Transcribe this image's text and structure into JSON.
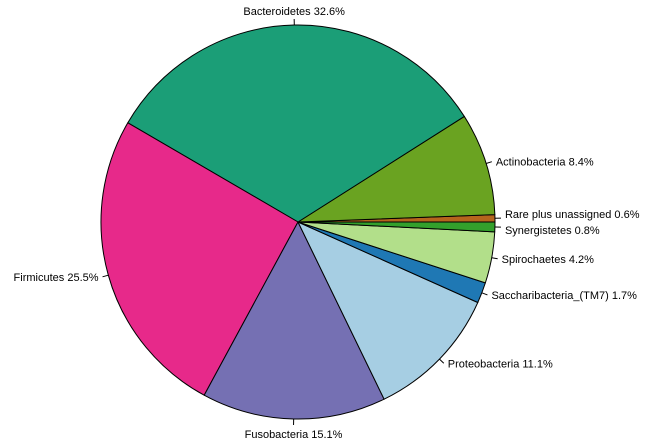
{
  "chart_data": {
    "type": "pie",
    "start_angle_deg": 0,
    "direction": "counterclockwise",
    "slices": [
      {
        "label": "Rare plus unassigned 0.6%",
        "value": 0.6,
        "color": "#b5651d"
      },
      {
        "label": "Actinobacteria 8.4%",
        "value": 8.4,
        "color": "#6aa321"
      },
      {
        "label": "Bacteroidetes 32.6%",
        "value": 32.6,
        "color": "#1b9e77"
      },
      {
        "label": "Firmicutes 25.5%",
        "value": 25.5,
        "color": "#e7298a"
      },
      {
        "label": "Fusobacteria 15.1%",
        "value": 15.1,
        "color": "#7570b3"
      },
      {
        "label": "Proteobacteria 11.1%",
        "value": 11.1,
        "color": "#a6cee3"
      },
      {
        "label": "Saccharibacteria_(TM7) 1.7%",
        "value": 1.7,
        "color": "#1f78b4"
      },
      {
        "label": "Spirochaetes 4.2%",
        "value": 4.2,
        "color": "#b2df8a"
      },
      {
        "label": "Synergistetes 0.8%",
        "value": 0.8,
        "color": "#33a02c"
      }
    ]
  }
}
